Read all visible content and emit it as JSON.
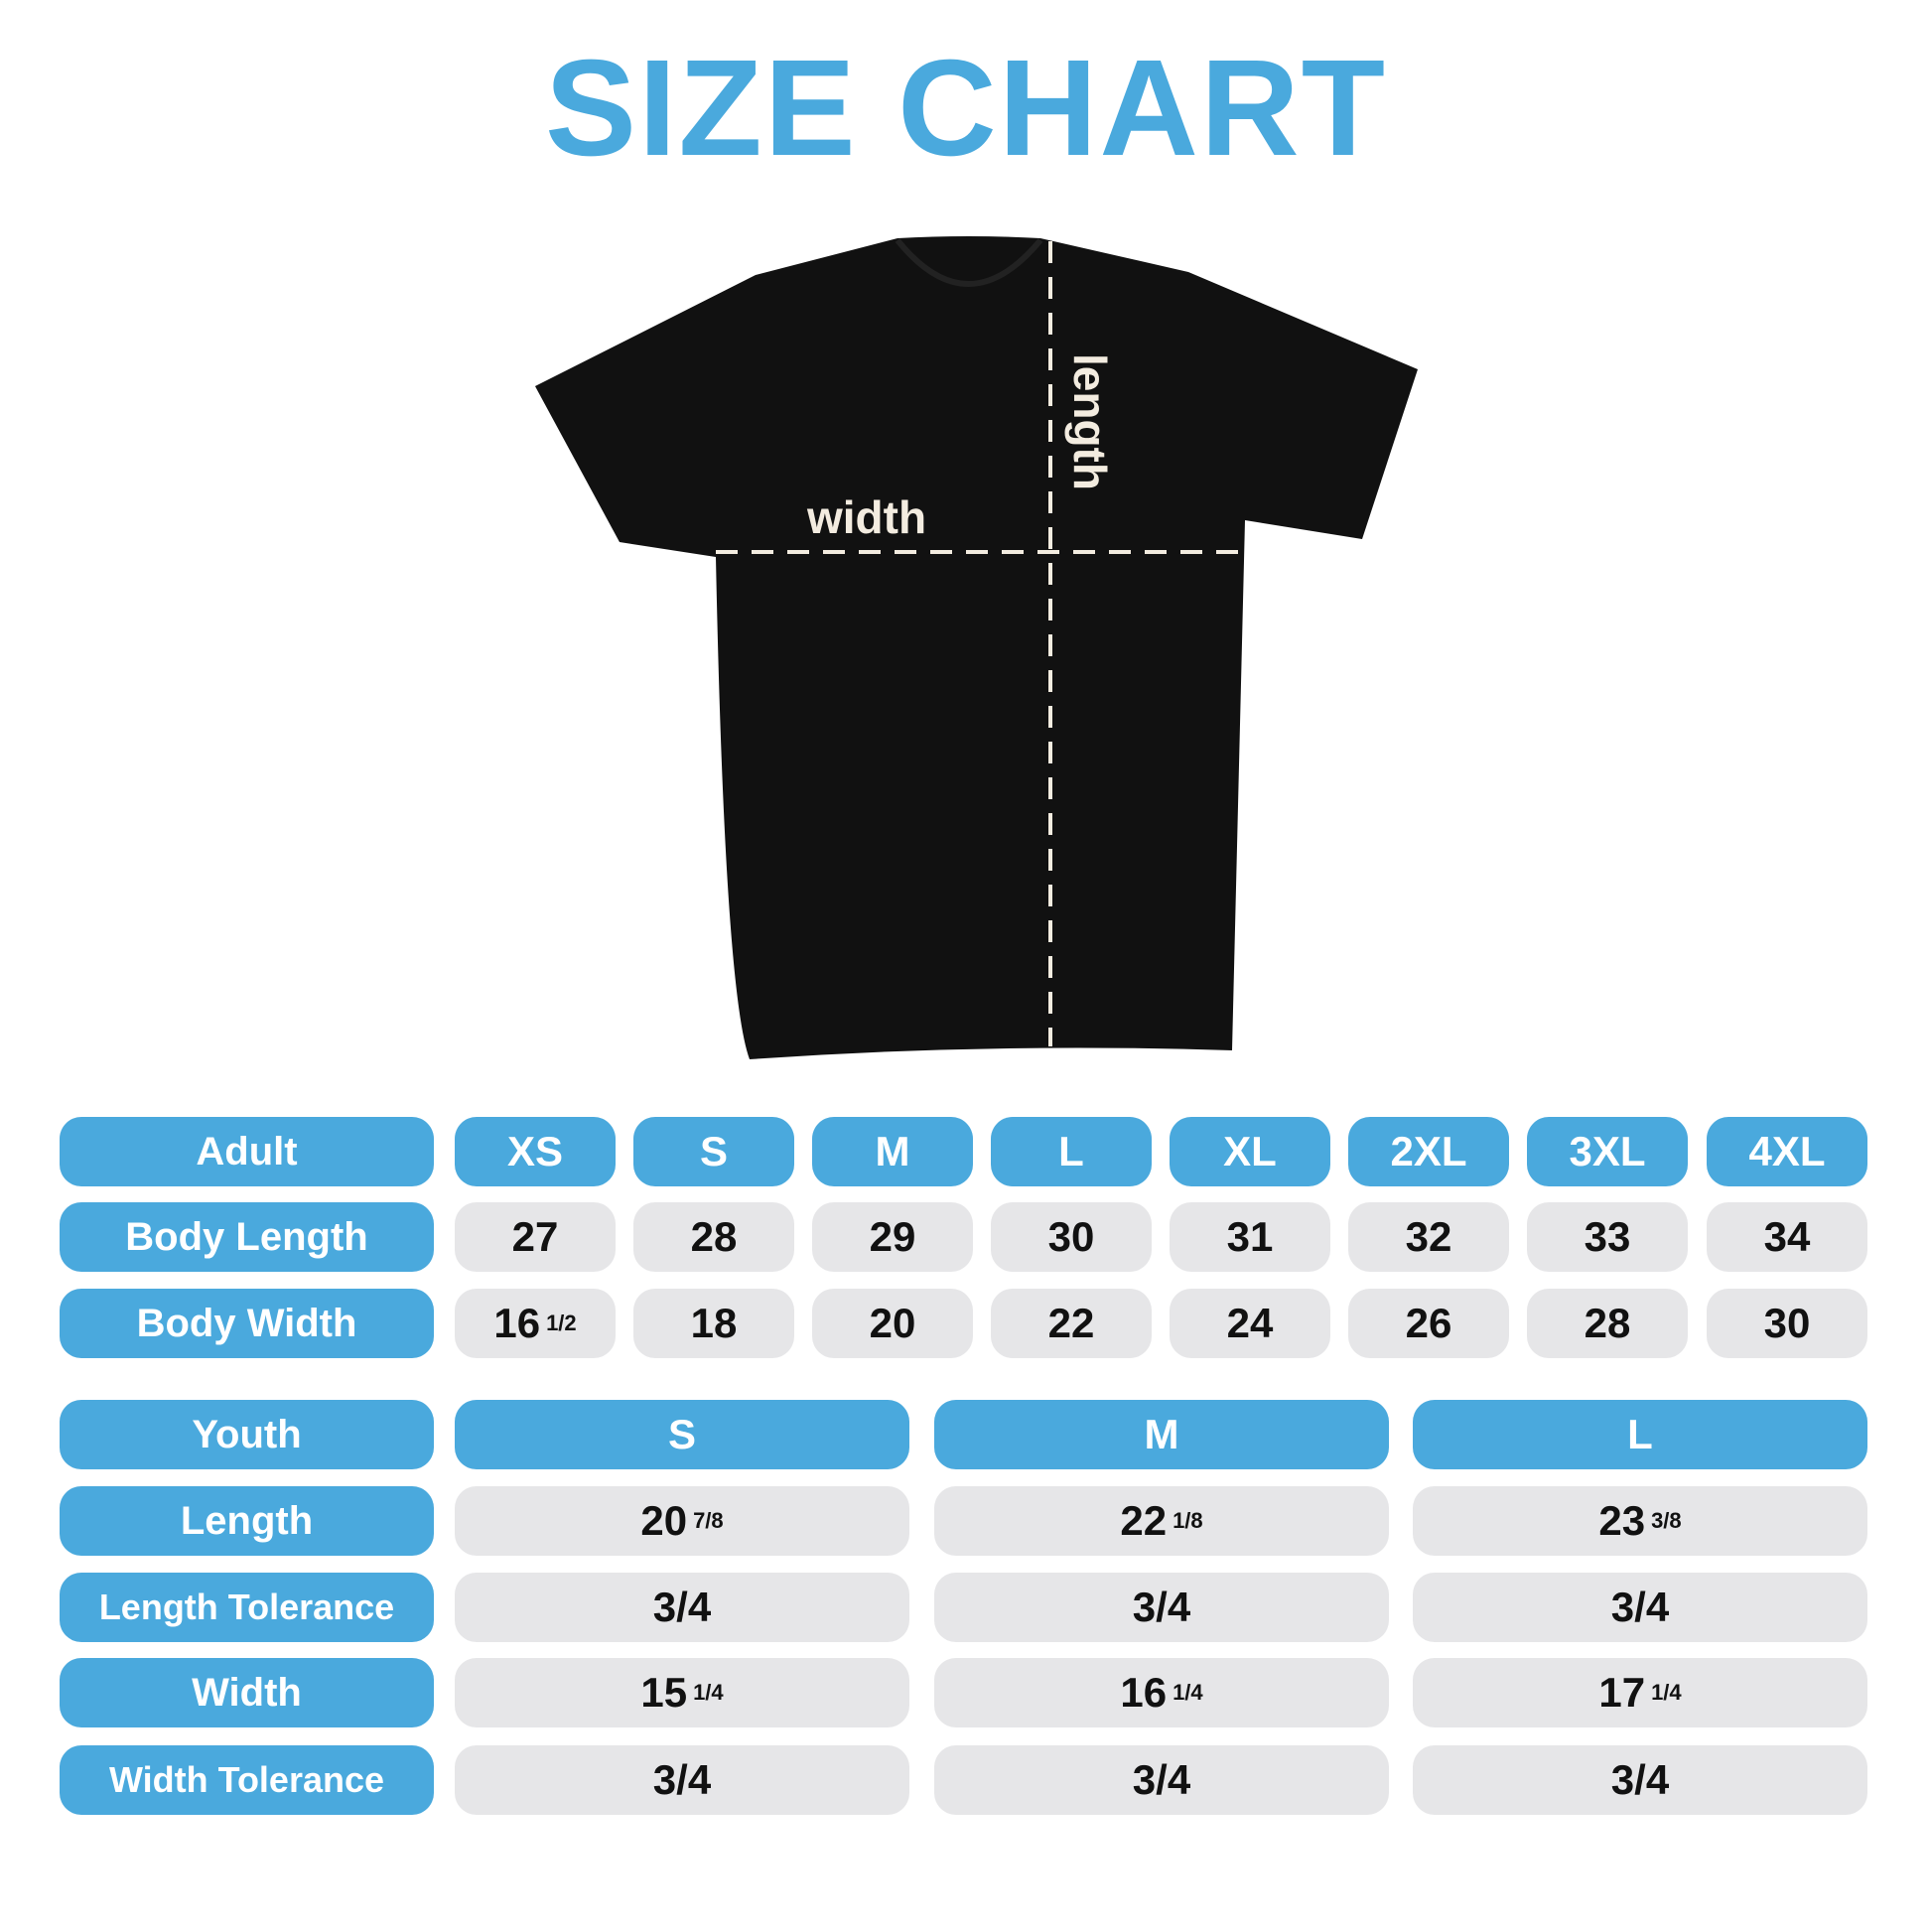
{
  "title": "SIZE CHART",
  "diagram": {
    "width_label": "width",
    "length_label": "length",
    "shirt_color": "#111111",
    "label_color": "#f3ece0"
  },
  "colors": {
    "accent": "#4aa9dd",
    "cell": "#e6e6e8"
  },
  "adult": {
    "header": "Adult",
    "sizes": [
      "XS",
      "S",
      "M",
      "L",
      "XL",
      "2XL",
      "3XL",
      "4XL"
    ],
    "rows": [
      {
        "label": "Body Length",
        "values": [
          {
            "w": "27",
            "f": ""
          },
          {
            "w": "28",
            "f": ""
          },
          {
            "w": "29",
            "f": ""
          },
          {
            "w": "30",
            "f": ""
          },
          {
            "w": "31",
            "f": ""
          },
          {
            "w": "32",
            "f": ""
          },
          {
            "w": "33",
            "f": ""
          },
          {
            "w": "34",
            "f": ""
          }
        ]
      },
      {
        "label": "Body Width",
        "values": [
          {
            "w": "16",
            "f": "1/2"
          },
          {
            "w": "18",
            "f": ""
          },
          {
            "w": "20",
            "f": ""
          },
          {
            "w": "22",
            "f": ""
          },
          {
            "w": "24",
            "f": ""
          },
          {
            "w": "26",
            "f": ""
          },
          {
            "w": "28",
            "f": ""
          },
          {
            "w": "30",
            "f": ""
          }
        ]
      }
    ]
  },
  "youth": {
    "header": "Youth",
    "sizes": [
      "S",
      "M",
      "L"
    ],
    "rows": [
      {
        "label": "Length",
        "values": [
          {
            "w": "20",
            "f": "7/8"
          },
          {
            "w": "22",
            "f": "1/8"
          },
          {
            "w": "23",
            "f": "3/8"
          }
        ]
      },
      {
        "label": "Length Tolerance",
        "values": [
          {
            "w": "3/4",
            "f": ""
          },
          {
            "w": "3/4",
            "f": ""
          },
          {
            "w": "3/4",
            "f": ""
          }
        ]
      },
      {
        "label": "Width",
        "values": [
          {
            "w": "15",
            "f": "1/4"
          },
          {
            "w": "16",
            "f": "1/4"
          },
          {
            "w": "17",
            "f": "1/4"
          }
        ]
      },
      {
        "label": "Width Tolerance",
        "values": [
          {
            "w": "3/4",
            "f": ""
          },
          {
            "w": "3/4",
            "f": ""
          },
          {
            "w": "3/4",
            "f": ""
          }
        ]
      }
    ]
  }
}
